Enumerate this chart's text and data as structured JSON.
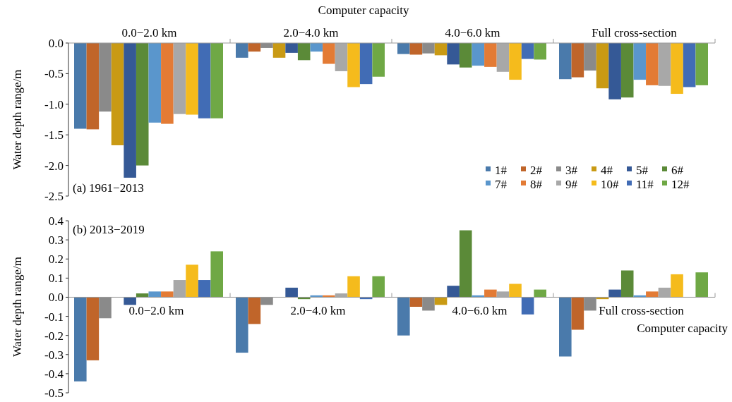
{
  "chart_data": [
    {
      "type": "bar",
      "xlabel": "Computer capacity",
      "ylabel": "Water depth range/m",
      "categories": [
        "0.0−2.0 km",
        "2.0−4.0 km",
        "4.0−6.0 km",
        "Full cross-section"
      ],
      "ylim": [
        -2.5,
        0
      ],
      "yticks": [
        {
          "value": 0,
          "label": "0.0"
        },
        -0.5,
        {
          "value": -1,
          "label": "-1.0"
        },
        -1.5,
        {
          "value": -2,
          "label": "-2.0"
        },
        -2.5
      ],
      "legend": "bottom right",
      "grid": false,
      "annotations": [
        "(a) 1961−2013"
      ],
      "series": [
        {
          "name": "1#",
          "color": "#4a7aab",
          "values": [
            -1.4,
            -0.24,
            -0.18,
            -0.59
          ]
        },
        {
          "name": "2#",
          "color": "#c0652a",
          "values": [
            -1.41,
            -0.14,
            -0.19,
            -0.56
          ]
        },
        {
          "name": "3#",
          "color": "#8a8a8a",
          "values": [
            -1.12,
            -0.08,
            -0.17,
            -0.45
          ]
        },
        {
          "name": "4#",
          "color": "#c99a14",
          "values": [
            -1.67,
            -0.24,
            -0.2,
            -0.74
          ]
        },
        {
          "name": "5#",
          "color": "#355996",
          "values": [
            -2.2,
            -0.16,
            -0.35,
            -0.92
          ]
        },
        {
          "name": "6#",
          "color": "#5b8a38",
          "values": [
            -2.0,
            -0.28,
            -0.4,
            -0.89
          ]
        },
        {
          "name": "7#",
          "color": "#5a96cc",
          "values": [
            -1.3,
            -0.14,
            -0.37,
            -0.6
          ]
        },
        {
          "name": "8#",
          "color": "#e37b35",
          "values": [
            -1.32,
            -0.34,
            -0.39,
            -0.69
          ]
        },
        {
          "name": "9#",
          "color": "#a8a8a8",
          "values": [
            -1.16,
            -0.46,
            -0.47,
            -0.7
          ]
        },
        {
          "name": "10#",
          "color": "#f5bb1c",
          "values": [
            -1.17,
            -0.72,
            -0.6,
            -0.83
          ]
        },
        {
          "name": "11#",
          "color": "#416cb5",
          "values": [
            -1.23,
            -0.67,
            -0.26,
            -0.72
          ]
        },
        {
          "name": "12#",
          "color": "#6fa845",
          "values": [
            -1.23,
            -0.55,
            -0.27,
            -0.69
          ]
        }
      ]
    },
    {
      "type": "bar",
      "xlabel": "Computer capacity",
      "ylabel": "Water depth range/m",
      "categories": [
        "0.0−2.0 km",
        "2.0−4.0 km",
        "4.0−6.0 km",
        "Full cross-section"
      ],
      "ylim": [
        -0.5,
        0.4
      ],
      "yticks": [
        0.4,
        0.3,
        0.2,
        0.1,
        {
          "value": 0,
          "label": "0.0"
        },
        -0.1,
        -0.2,
        -0.3,
        -0.4,
        -0.5
      ],
      "legend": false,
      "grid": false,
      "annotations": [
        "(b) 2013−2019"
      ],
      "series": [
        {
          "color": "#4a7aab",
          "values": [
            -0.44,
            -0.29,
            -0.2,
            -0.31
          ]
        },
        {
          "color": "#c0652a",
          "values": [
            -0.33,
            -0.14,
            -0.05,
            -0.17
          ]
        },
        {
          "color": "#8a8a8a",
          "values": [
            -0.11,
            -0.04,
            -0.07,
            -0.07
          ]
        },
        {
          "color": "#c99a14",
          "values": [
            0,
            0,
            -0.04,
            -0.01
          ]
        },
        {
          "color": "#355996",
          "values": [
            -0.04,
            0.05,
            0.06,
            0.04
          ]
        },
        {
          "color": "#5b8a38",
          "values": [
            0.02,
            -0.01,
            0.35,
            0.14
          ]
        },
        {
          "color": "#5a96cc",
          "values": [
            0.03,
            0.01,
            0.01,
            0.01
          ]
        },
        {
          "color": "#e37b35",
          "values": [
            0.03,
            0.01,
            0.04,
            0.03
          ]
        },
        {
          "color": "#a8a8a8",
          "values": [
            0.09,
            0.02,
            0.03,
            0.05
          ]
        },
        {
          "color": "#f5bb1c",
          "values": [
            0.17,
            0.11,
            0.07,
            0.12
          ]
        },
        {
          "color": "#416cb5",
          "values": [
            0.09,
            -0.01,
            -0.09,
            0
          ]
        },
        {
          "color": "#6fa845",
          "values": [
            0.24,
            0.11,
            0.04,
            0.13
          ]
        }
      ]
    }
  ]
}
